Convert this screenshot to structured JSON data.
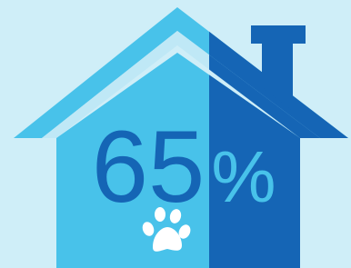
{
  "stat": {
    "number": "65",
    "unit": "%"
  }
}
